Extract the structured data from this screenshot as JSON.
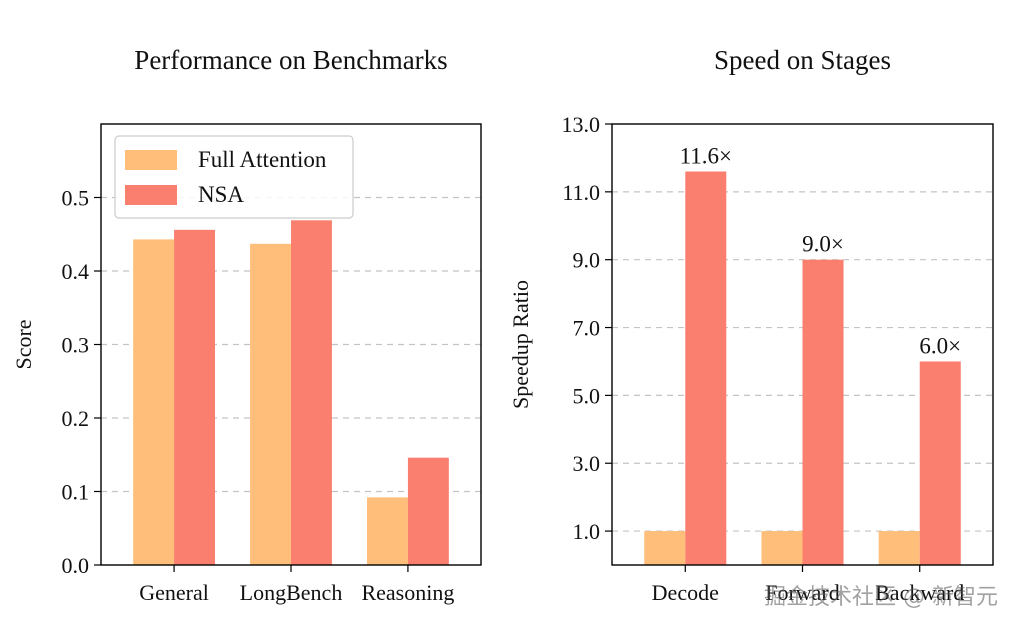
{
  "chart_data": [
    {
      "type": "bar",
      "title": "Performance on Benchmarks",
      "xlabel": "",
      "ylabel": "Score",
      "categories": [
        "General",
        "LongBench",
        "Reasoning"
      ],
      "series": [
        {
          "name": "Full Attention",
          "values": [
            0.443,
            0.437,
            0.092
          ],
          "color": "#FFBE7A"
        },
        {
          "name": "NSA",
          "values": [
            0.456,
            0.469,
            0.146
          ],
          "color": "#FA7F6F"
        }
      ],
      "ylim": [
        0,
        0.6
      ],
      "yticks": [
        "0.0",
        "0.1",
        "0.2",
        "0.3",
        "0.4",
        "0.5"
      ],
      "grid": "horizontal-dashed",
      "legend_position": "top-left"
    },
    {
      "type": "bar",
      "title": "Speed on Stages",
      "xlabel": "",
      "ylabel": "Speedup Ratio",
      "categories": [
        "Decode",
        "Forward",
        "Backward"
      ],
      "series": [
        {
          "values": [
            1.0,
            1.0,
            1.0
          ],
          "color": "#FFBE7A"
        },
        {
          "values": [
            11.6,
            9.0,
            6.0
          ],
          "color": "#FA7F6F"
        }
      ],
      "annotations": [
        "11.6×",
        "9.0×",
        "6.0×"
      ],
      "ylim": [
        0,
        13
      ],
      "yticks": [
        "1.0",
        "3.0",
        "5.0",
        "7.0",
        "9.0",
        "11.0",
        "13.0"
      ],
      "grid": "horizontal-dashed"
    }
  ],
  "watermark": "掘金技术社区 @ 新智元"
}
